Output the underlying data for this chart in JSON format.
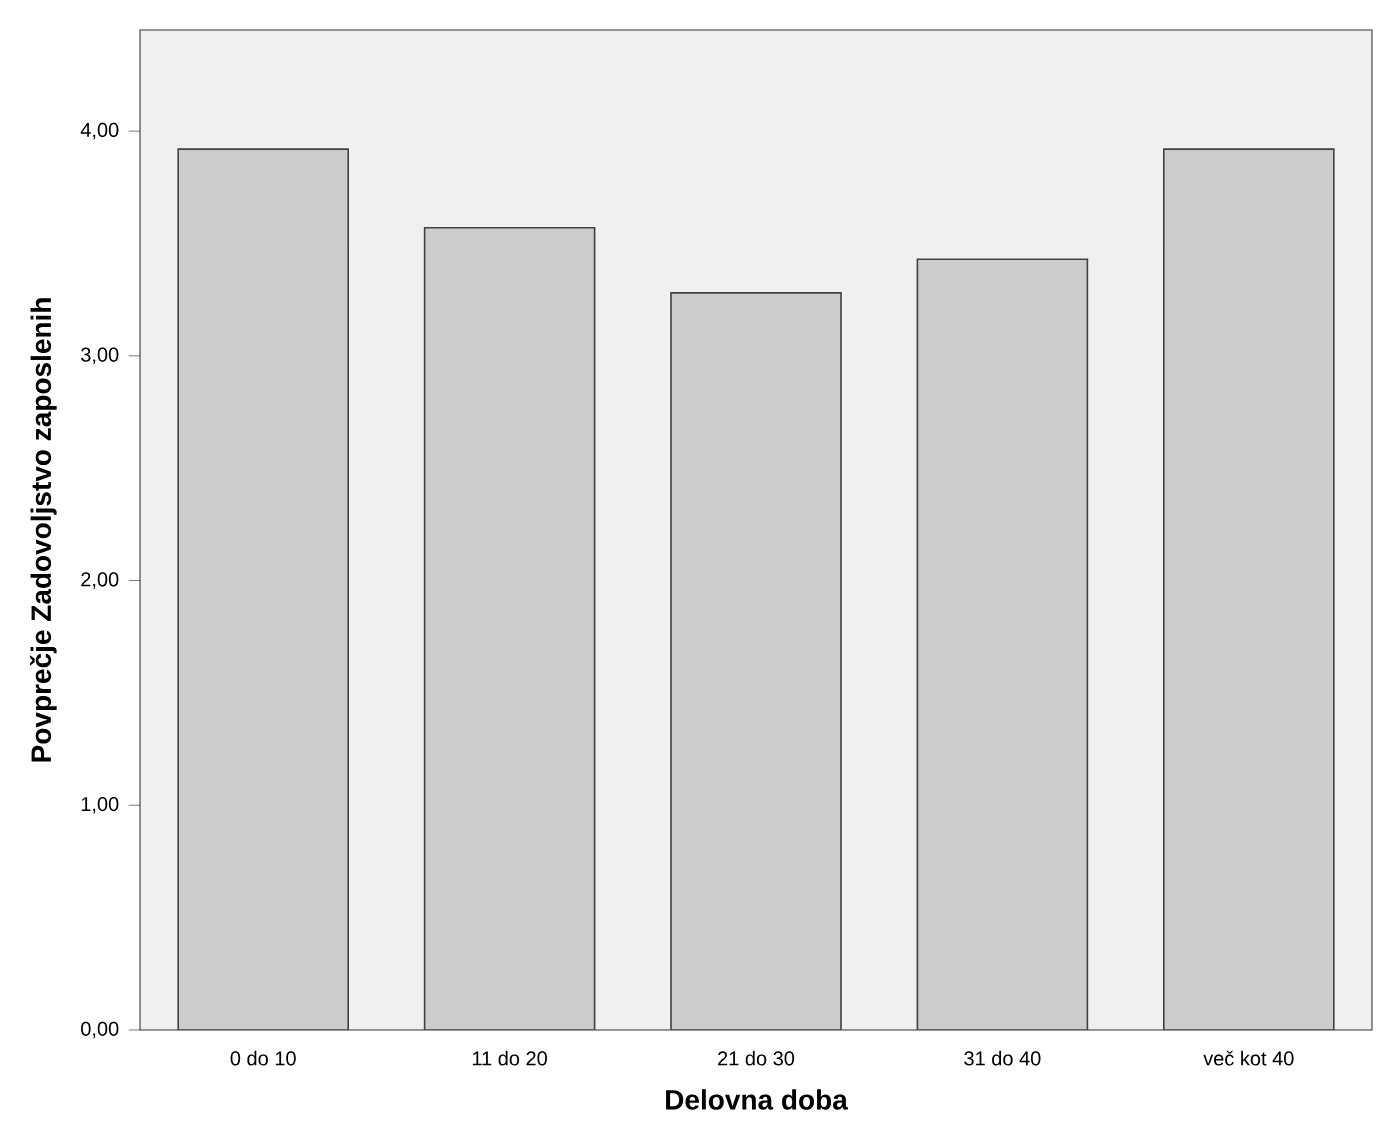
{
  "chart_data": {
    "type": "bar",
    "xlabel": "Delovna doba",
    "ylabel": "Povprečje Zadovoljstvo zaposlenih",
    "categories": [
      "0 do 10",
      "11 do 20",
      "21 do 30",
      "31 do 40",
      "več kot 40"
    ],
    "values": [
      3.92,
      3.57,
      3.28,
      3.43,
      3.92
    ],
    "color": "#cccccc",
    "ylim": [
      0,
      4.45
    ],
    "yticks": [
      {
        "value": 0,
        "label": "0,00"
      },
      {
        "value": 1,
        "label": "1,00"
      },
      {
        "value": 2,
        "label": "2,00"
      },
      {
        "value": 3,
        "label": "3,00"
      },
      {
        "value": 4,
        "label": "4,00"
      }
    ],
    "grid": false
  }
}
